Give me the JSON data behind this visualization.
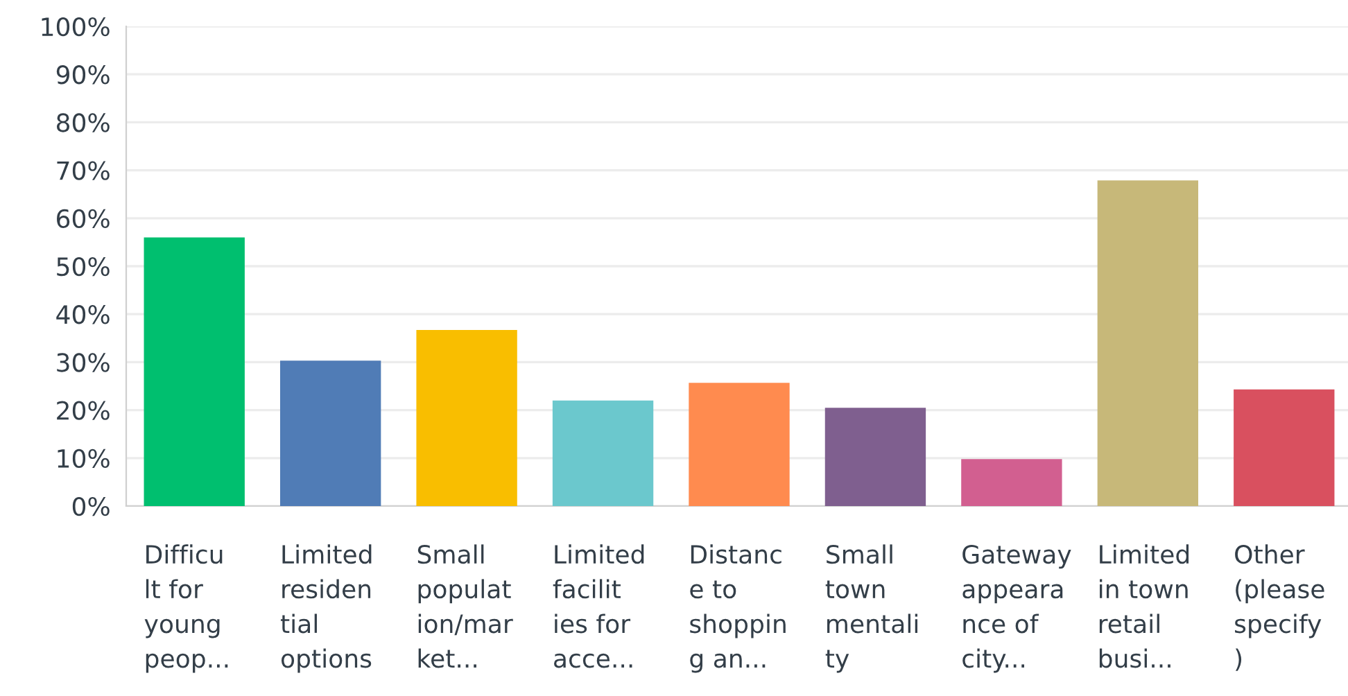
{
  "chart_data": {
    "type": "bar",
    "categories": [
      "Difficu\nlt for\nyoung\npeop...",
      "Limited\nresiden\ntial\noptions",
      "Small\npopulat\nion/mar\nket...",
      "Limited\nfacilit\nies for\nacce...",
      "Distanc\ne to\nshoppin\ng an...",
      "Small\ntown\nmentali\nty",
      "Gateway\nappeara\nnce of\ncity...",
      "Limited\nin town\nretail\nbusi...",
      "Other\n(please\nspecify\n)"
    ],
    "values": [
      56,
      30.3,
      36.7,
      22,
      25.7,
      20.5,
      9.8,
      67.9,
      24.3
    ],
    "colors": [
      "#00bf6f",
      "#507cb6",
      "#f9be00",
      "#6bc8cd",
      "#ff8b4f",
      "#7f5f8f",
      "#d25f90",
      "#c7b879",
      "#d9505f"
    ],
    "ylim": [
      0,
      100
    ],
    "yticks": [
      {
        "value": 0,
        "label": "0%"
      },
      {
        "value": 10,
        "label": "10%"
      },
      {
        "value": 20,
        "label": "20%"
      },
      {
        "value": 30,
        "label": "30%"
      },
      {
        "value": 40,
        "label": "40%"
      },
      {
        "value": 50,
        "label": "50%"
      },
      {
        "value": 60,
        "label": "60%"
      },
      {
        "value": 70,
        "label": "70%"
      },
      {
        "value": 80,
        "label": "80%"
      },
      {
        "value": 90,
        "label": "90%"
      },
      {
        "value": 100,
        "label": "100%"
      }
    ],
    "grid": "y"
  }
}
